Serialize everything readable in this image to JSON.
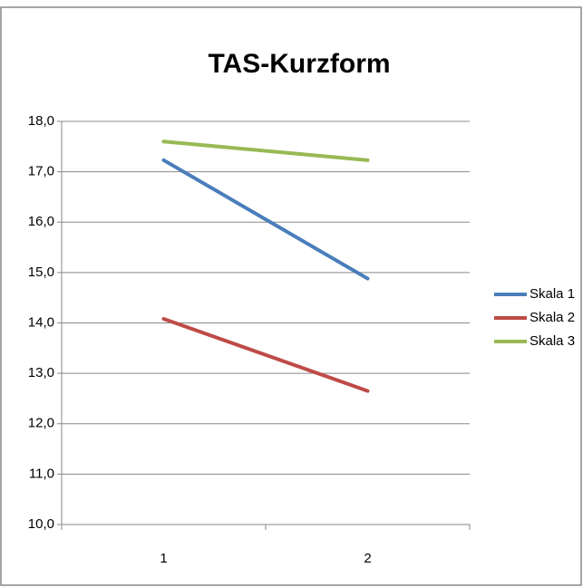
{
  "chart_data": {
    "type": "line",
    "title": "TAS-Kurzform",
    "categories": [
      "1",
      "2"
    ],
    "series": [
      {
        "name": "Skala 1",
        "color": "#4a7ebb",
        "values": [
          17.23,
          14.88
        ]
      },
      {
        "name": "Skala 2",
        "color": "#be4b48",
        "values": [
          14.08,
          12.65
        ]
      },
      {
        "name": "Skala 3",
        "color": "#98b954",
        "values": [
          17.6,
          17.23
        ]
      }
    ],
    "ylim": [
      10,
      18
    ],
    "yticks": [
      {
        "value": 10,
        "label": "10,0"
      },
      {
        "value": 11,
        "label": "11,0"
      },
      {
        "value": 12,
        "label": "12,0"
      },
      {
        "value": 13,
        "label": "13,0"
      },
      {
        "value": 14,
        "label": "14,0"
      },
      {
        "value": 15,
        "label": "15,0"
      },
      {
        "value": 16,
        "label": "16,0"
      },
      {
        "value": 17,
        "label": "17,0"
      },
      {
        "value": 18,
        "label": "18,0"
      }
    ],
    "grid": true,
    "legend": "right"
  }
}
